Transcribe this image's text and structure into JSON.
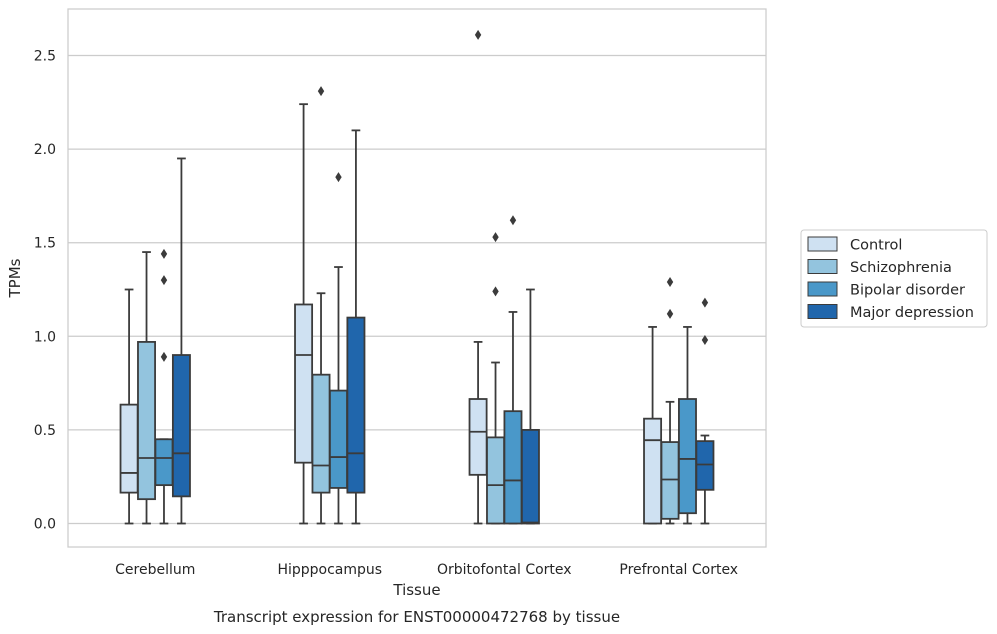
{
  "chart_data": {
    "type": "box",
    "caption": "Transcript expression for ENST00000472768 by tissue",
    "xlabel": "Tissue",
    "ylabel": "TPMs",
    "ylim": [
      -0.13,
      2.75
    ],
    "yticks": [
      0.0,
      0.5,
      1.0,
      1.5,
      2.0,
      2.5
    ],
    "ytick_labels": [
      "0.0",
      "0.5",
      "1.0",
      "1.5",
      "2.0",
      "2.5"
    ],
    "categories": [
      "Cerebellum",
      "Hipppocampus",
      "Orbitofontal Cortex",
      "Prefrontal Cortex"
    ],
    "grid": "horizontal",
    "legend_position": "right",
    "series": [
      {
        "name": "Control",
        "color": "#cfe1f2",
        "boxes": [
          {
            "whislo": 0.0,
            "q1": 0.165,
            "med": 0.27,
            "q3": 0.635,
            "whishi": 1.25,
            "fliers": []
          },
          {
            "whislo": 0.0,
            "q1": 0.325,
            "med": 0.9,
            "q3": 1.17,
            "whishi": 2.24,
            "fliers": []
          },
          {
            "whislo": 0.0,
            "q1": 0.26,
            "med": 0.49,
            "q3": 0.665,
            "whishi": 0.97,
            "fliers": [
              2.61
            ]
          },
          {
            "whislo": 0.0,
            "q1": 0.0,
            "med": 0.445,
            "q3": 0.56,
            "whishi": 1.05,
            "fliers": []
          }
        ]
      },
      {
        "name": "Schizophrenia",
        "color": "#93c4de",
        "boxes": [
          {
            "whislo": 0.0,
            "q1": 0.13,
            "med": 0.35,
            "q3": 0.97,
            "whishi": 1.45,
            "fliers": []
          },
          {
            "whislo": 0.0,
            "q1": 0.165,
            "med": 0.31,
            "q3": 0.795,
            "whishi": 1.23,
            "fliers": [
              2.31
            ]
          },
          {
            "whislo": 0.0,
            "q1": 0.0,
            "med": 0.205,
            "q3": 0.46,
            "whishi": 0.86,
            "fliers": [
              1.24,
              1.53
            ]
          },
          {
            "whislo": 0.0,
            "q1": 0.025,
            "med": 0.235,
            "q3": 0.435,
            "whishi": 0.65,
            "fliers": [
              1.12,
              1.29
            ]
          }
        ]
      },
      {
        "name": "Bipolar disorder",
        "color": "#4a98c9",
        "boxes": [
          {
            "whislo": 0.0,
            "q1": 0.205,
            "med": 0.35,
            "q3": 0.45,
            "whishi": 0.45,
            "fliers": [
              0.89,
              1.3,
              1.44
            ]
          },
          {
            "whislo": 0.0,
            "q1": 0.19,
            "med": 0.355,
            "q3": 0.71,
            "whishi": 1.37,
            "fliers": [
              1.85
            ]
          },
          {
            "whislo": 0.0,
            "q1": 0.0,
            "med": 0.23,
            "q3": 0.6,
            "whishi": 1.13,
            "fliers": [
              1.62
            ]
          },
          {
            "whislo": 0.0,
            "q1": 0.055,
            "med": 0.345,
            "q3": 0.665,
            "whishi": 1.05,
            "fliers": []
          }
        ]
      },
      {
        "name": "Major depression",
        "color": "#2066ac",
        "boxes": [
          {
            "whislo": 0.0,
            "q1": 0.145,
            "med": 0.375,
            "q3": 0.9,
            "whishi": 1.95,
            "fliers": []
          },
          {
            "whislo": 0.0,
            "q1": 0.165,
            "med": 0.375,
            "q3": 1.1,
            "whishi": 2.1,
            "fliers": []
          },
          {
            "whislo": 0.0,
            "q1": 0.0,
            "med": 0.005,
            "q3": 0.5,
            "whishi": 1.25,
            "fliers": []
          },
          {
            "whislo": 0.0,
            "q1": 0.18,
            "med": 0.315,
            "q3": 0.44,
            "whishi": 0.47,
            "fliers": [
              0.98,
              1.18
            ]
          }
        ]
      }
    ]
  }
}
